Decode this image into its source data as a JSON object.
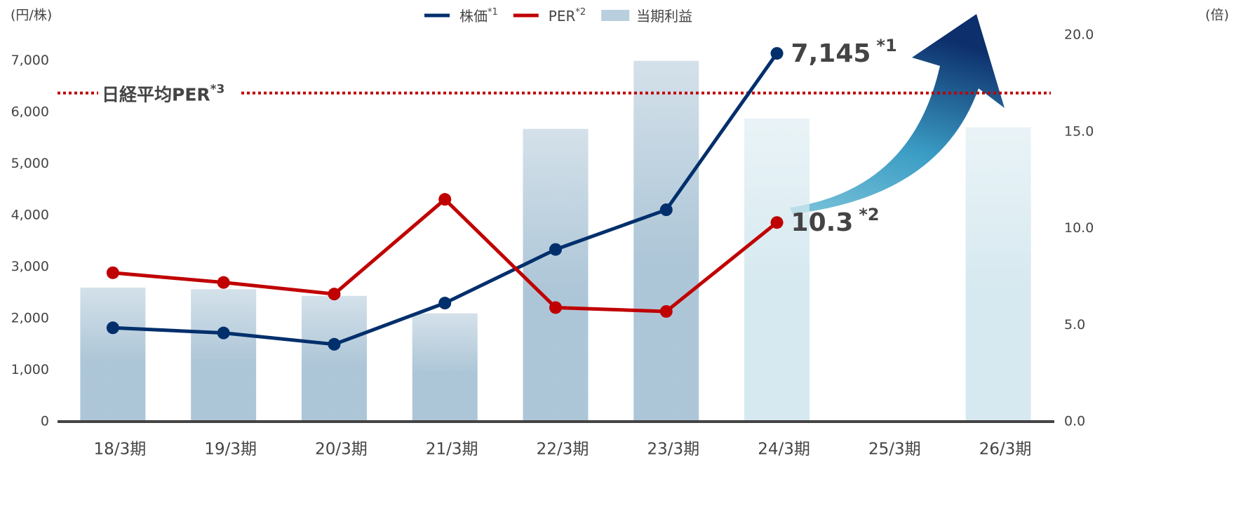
{
  "chart_data": {
    "type": "combo",
    "y_label": "(円/株)",
    "y2_label": "(倍)",
    "categories": [
      "18/3期",
      "19/3期",
      "20/3期",
      "21/3期",
      "22/3期",
      "23/3期",
      "24/3期",
      "25/3期",
      "26/3期"
    ],
    "series": [
      {
        "name": "当期利益",
        "type": "bar",
        "color": "#a9c3d5",
        "colors": [
          "#a9c3d5",
          "#a9c3d5",
          "#a9c3d5",
          "#a9c3d5",
          "#a9c3d5",
          "#a9c3d5",
          "#d4e8ef",
          null,
          "#d4e8ef"
        ],
        "values": [
          2600,
          2570,
          2440,
          2100,
          5680,
          7000,
          5880,
          null,
          5710
        ]
      },
      {
        "name": "株価",
        "name_note": "*1",
        "type": "line",
        "color": "#002f6c",
        "values": [
          1820,
          1720,
          1500,
          2300,
          3340,
          4110,
          7145,
          null,
          null
        ],
        "value_labels": [
          null,
          null,
          null,
          null,
          null,
          null,
          "7,145",
          null,
          null
        ],
        "value_label_note": "*1",
        "value_label_color": "#4bb3d0"
      },
      {
        "name": "PER",
        "name_note": "*2",
        "type": "line",
        "axis": "y2",
        "color": "#c00000",
        "values": [
          7.7,
          7.2,
          6.6,
          11.5,
          5.9,
          5.7,
          10.3,
          null,
          null
        ],
        "value_labels": [
          null,
          null,
          null,
          null,
          null,
          null,
          "10.3",
          null,
          null
        ],
        "value_label_note": "*2",
        "value_label_color": "#c00000"
      }
    ],
    "reference_line": {
      "label": "日経平均PER",
      "note": "*3",
      "value": 17.0,
      "axis": "y2",
      "color": "#c00000"
    },
    "ylim": [
      0,
      7500
    ],
    "yticks": [
      0,
      {
        "value": 1000,
        "label": "1,000"
      },
      {
        "value": 2000,
        "label": "2,000"
      },
      {
        "value": 3000,
        "label": "3,000"
      },
      {
        "value": 4000,
        "label": "4,000"
      },
      {
        "value": 5000,
        "label": "5,000"
      },
      {
        "value": 6000,
        "label": "6,000"
      },
      {
        "value": 7000,
        "label": "7,000"
      }
    ],
    "y2lim": [
      0,
      20
    ],
    "y2ticks": [
      {
        "value": 0,
        "label": "0.0"
      },
      {
        "value": 5,
        "label": "5.0"
      },
      {
        "value": 10,
        "label": "10.0"
      },
      {
        "value": 15,
        "label": "15.0"
      },
      {
        "value": 20,
        "label": "20.0"
      }
    ],
    "grid": false
  }
}
